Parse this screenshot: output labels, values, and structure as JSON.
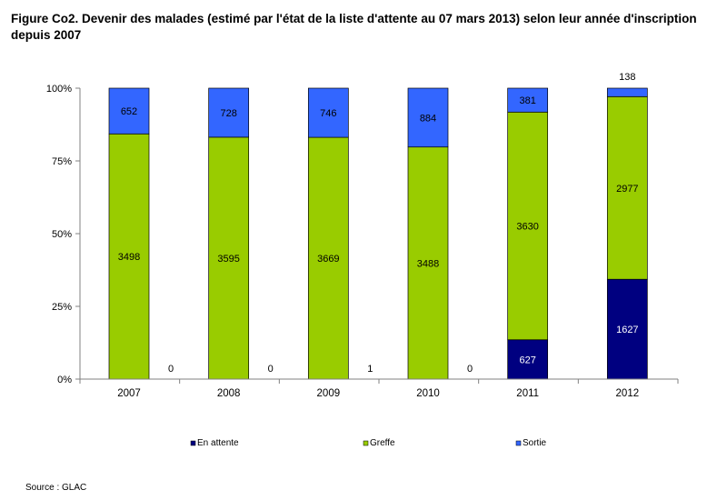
{
  "title": "Figure Co2. Devenir des malades (estimé par l'état de la liste d'attente au 07 mars 2013) selon leur année d'inscription depuis 2007",
  "source": "Source : GLAC",
  "colors": {
    "en_attente": "#000080",
    "greffe": "#99CC00",
    "sortie": "#3366FF",
    "axis": "#808080"
  },
  "chart_data": {
    "type": "bar",
    "stacked": "percent",
    "categories": [
      "2007",
      "2008",
      "2009",
      "2010",
      "2011",
      "2012"
    ],
    "series": [
      {
        "name": "En attente",
        "values": [
          0,
          0,
          1,
          0,
          627,
          1627
        ]
      },
      {
        "name": "Greffe",
        "values": [
          3498,
          3595,
          3669,
          3488,
          3630,
          2977
        ]
      },
      {
        "name": "Sortie",
        "values": [
          652,
          728,
          746,
          884,
          381,
          138
        ]
      }
    ],
    "yticks": [
      "0%",
      "25%",
      "50%",
      "75%",
      "100%"
    ],
    "ylim": [
      0,
      100
    ],
    "grid": false,
    "legend": "bottom"
  }
}
